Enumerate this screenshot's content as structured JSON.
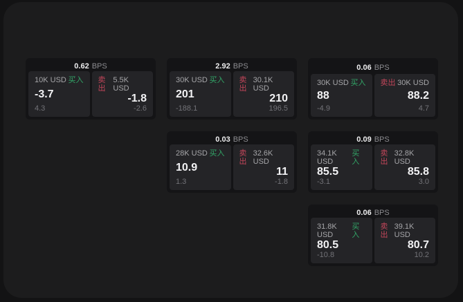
{
  "labels": {
    "bps_unit": "BPS",
    "buy": "买入",
    "sell": "卖出"
  },
  "colors": {
    "page_bg": "#131314",
    "panel_bg": "#1c1c1d",
    "card_bg": "#141416",
    "tile_bg": "#242427",
    "buy_green": "#32a567",
    "sell_red": "#c2465a",
    "price_text": "#f2f2f4",
    "muted_text": "#737378"
  },
  "cards": [
    {
      "bps": "0.62",
      "buy": {
        "amount": "10K USD",
        "price": "-3.7",
        "delta": "4.3"
      },
      "sell": {
        "amount": "5.5K USD",
        "price": "-1.8",
        "delta": "-2.6"
      }
    },
    {
      "bps": "2.92",
      "buy": {
        "amount": "30K USD",
        "price": "201",
        "delta": "-188.1"
      },
      "sell": {
        "amount": "30.1K USD",
        "price": "210",
        "delta": "196.5"
      }
    },
    {
      "bps": "0.06",
      "buy": {
        "amount": "30K USD",
        "price": "88",
        "delta": "-4.9"
      },
      "sell": {
        "amount": "30K USD",
        "price": "88.2",
        "delta": "4.7"
      }
    },
    {
      "bps": "0.03",
      "buy": {
        "amount": "28K USD",
        "price": "10.9",
        "delta": "1.3"
      },
      "sell": {
        "amount": "32.6K USD",
        "price": "11",
        "delta": "-1.8"
      }
    },
    {
      "bps": "0.09",
      "buy": {
        "amount": "34.1K USD",
        "price": "85.5",
        "delta": "-3.1"
      },
      "sell": {
        "amount": "32.8K USD",
        "price": "85.8",
        "delta": "3.0"
      }
    },
    {
      "bps": "0.06",
      "buy": {
        "amount": "31.8K USD",
        "price": "80.5",
        "delta": "-10.8"
      },
      "sell": {
        "amount": "39.1K USD",
        "price": "80.7",
        "delta": "10.2"
      }
    }
  ]
}
